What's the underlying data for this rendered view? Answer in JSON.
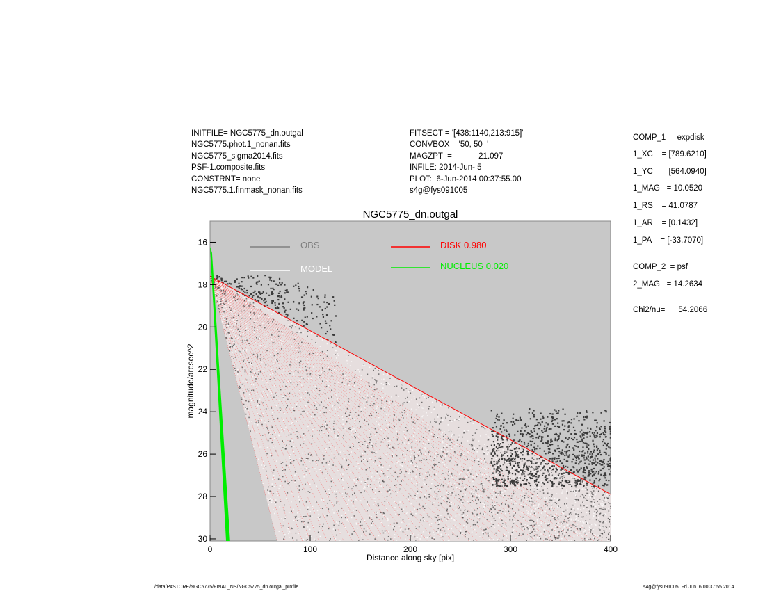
{
  "header_left": [
    "INITFILE= NGC5775_dn.outgal",
    "NGC5775.phot.1_nonan.fits",
    "NGC5775_sigma2014.fits",
    "PSF-1.composite.fits",
    "CONSTRNT= none",
    "NGC5775.1.finmask_nonan.fits"
  ],
  "header_mid": [
    "FITSECT = '[438:1140,213:915]'",
    "CONVBOX = '50, 50  '",
    "MAGZPT  =            21.097",
    "INFILE: 2014-Jun- 5",
    "PLOT:  6-Jun-2014 00:37:55.00",
    "s4g@fys091005"
  ],
  "params": [
    "COMP_1  = expdisk",
    "1_XC    = [789.6210]",
    "1_YC    = [564.0940]",
    "1_MAG   = 10.0520",
    "1_RS    = 41.0787",
    "1_AR    = [0.1432]",
    "1_PA    = [-33.7070]",
    "COMP_2  = psf",
    "2_MAG   = 14.2634",
    "Chi2/nu=      54.2066"
  ],
  "footer": {
    "left": "/data/P4STORE/NGC5775/FINAL_NS/NGC5775_dn.outgal_profile",
    "right": "s4g@fys091005  Fri Jun  6 00:37:55 2014"
  },
  "chart_data": {
    "type": "scatter",
    "title": "NGC5775_dn.outgal",
    "xlabel": "Distance along sky [pix]",
    "ylabel": "magnitude/arcsec^2",
    "xlim": [
      0,
      400
    ],
    "ylim": [
      30.1,
      15.0
    ],
    "y_inverted": true,
    "xticks": [
      "0",
      "100",
      "200",
      "300",
      "400"
    ],
    "yticks": [
      "16",
      "18",
      "20",
      "22",
      "24",
      "26",
      "28",
      "30"
    ],
    "grid": false,
    "background": "#c8c8c8",
    "legend": [
      {
        "label": "OBS",
        "color": "#808080"
      },
      {
        "label": "MODEL",
        "color": "#ffffff"
      },
      {
        "label": "DISK  0.980",
        "color": "#ff0000"
      },
      {
        "label": "NUCLEUS  0.020",
        "color": "#00ee00"
      }
    ],
    "series": [
      {
        "name": "DISK",
        "color": "#ff0000",
        "upper_edge": [
          [
            0,
            17.6
          ],
          [
            400,
            27.9
          ]
        ],
        "lower_edge": [
          [
            0,
            17.6
          ],
          [
            67,
            30.1
          ]
        ]
      },
      {
        "name": "NUCLEUS",
        "color": "#00ee00",
        "left_edge": [
          [
            0,
            16.2
          ],
          [
            16,
            30.1
          ]
        ],
        "right_edge": [
          [
            2,
            16.5
          ],
          [
            20,
            30.1
          ]
        ]
      },
      {
        "name": "OBS",
        "color": "#404040",
        "clusters": [
          {
            "x": [
              0,
              125
            ],
            "y": [
              17.5,
              20.7
            ]
          },
          {
            "x": [
              280,
              400
            ],
            "y": [
              23.8,
              27.5
            ]
          }
        ]
      }
    ]
  }
}
